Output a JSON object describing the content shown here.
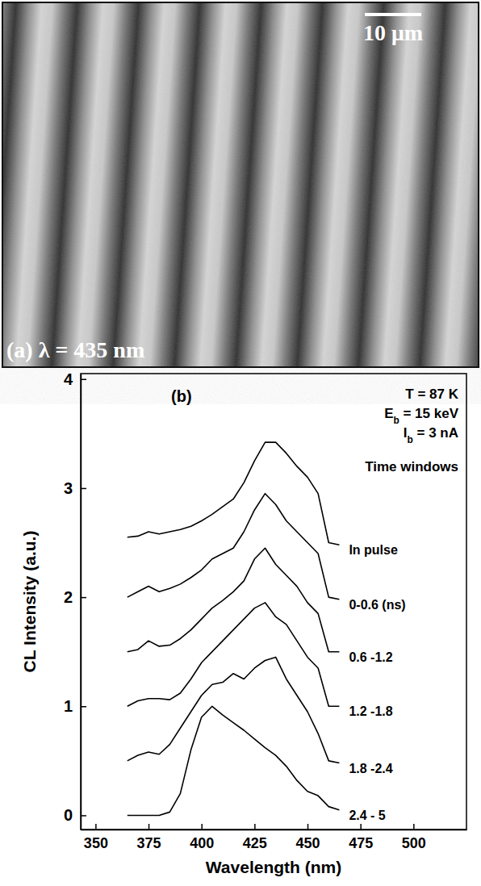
{
  "chart_data": [
    {
      "type": "image",
      "title": "(a) λ = 435 nm",
      "annotations": [
        "10 μm"
      ]
    },
    {
      "type": "line",
      "title": "(b)",
      "annotations": [
        "T = 87 K",
        "Eb = 15 keV",
        "Ib = 3 nA",
        "Time windows"
      ],
      "x_label": "Wavelength (nm)",
      "y_label": "CL Intensity (a.u.)",
      "x": [
        365,
        370,
        375,
        380,
        385,
        390,
        395,
        400,
        405,
        410,
        415,
        420,
        425,
        430,
        435,
        440,
        445,
        450,
        455,
        460,
        465
      ],
      "xlim": [
        343,
        525
      ],
      "xticks": [
        350,
        375,
        400,
        425,
        450,
        475,
        500
      ],
      "ylim": [
        -0.13,
        4.05
      ],
      "yticks": [
        0,
        1,
        2,
        3,
        4
      ],
      "legend": "right",
      "series": [
        {
          "name": "In pulse",
          "color": "#000000",
          "values": [
            2.55,
            2.56,
            2.6,
            2.58,
            2.6,
            2.62,
            2.65,
            2.7,
            2.76,
            2.83,
            2.9,
            3.05,
            3.25,
            3.42,
            3.42,
            3.32,
            3.2,
            3.1,
            2.95,
            2.5,
            2.48
          ]
        },
        {
          "name": "0-0.6 (ns)",
          "color": "#000000",
          "values": [
            2.0,
            2.05,
            2.1,
            2.05,
            2.08,
            2.12,
            2.18,
            2.25,
            2.35,
            2.4,
            2.45,
            2.6,
            2.8,
            2.95,
            2.85,
            2.7,
            2.6,
            2.5,
            2.4,
            2.0,
            1.98
          ]
        },
        {
          "name": "0.6 -1.2",
          "color": "#000000",
          "values": [
            1.5,
            1.52,
            1.6,
            1.55,
            1.56,
            1.62,
            1.7,
            1.8,
            1.9,
            1.97,
            2.05,
            2.15,
            2.35,
            2.45,
            2.3,
            2.2,
            2.1,
            1.95,
            1.85,
            1.5,
            1.5
          ]
        },
        {
          "name": "1.2 -1.8",
          "color": "#000000",
          "values": [
            1.0,
            1.05,
            1.07,
            1.07,
            1.06,
            1.12,
            1.25,
            1.4,
            1.5,
            1.6,
            1.7,
            1.8,
            1.9,
            1.95,
            1.82,
            1.75,
            1.6,
            1.45,
            1.35,
            1.0,
            1.0
          ]
        },
        {
          "name": "1.8 -2.4",
          "color": "#000000",
          "values": [
            0.5,
            0.55,
            0.58,
            0.56,
            0.65,
            0.8,
            0.95,
            1.1,
            1.2,
            1.22,
            1.3,
            1.25,
            1.35,
            1.42,
            1.45,
            1.25,
            1.1,
            0.95,
            0.75,
            0.5,
            0.48
          ]
        },
        {
          "name": "2.4 - 5",
          "color": "#000000",
          "values": [
            0,
            0,
            0,
            0,
            0.03,
            0.2,
            0.6,
            0.9,
            1.0,
            0.92,
            0.85,
            0.78,
            0.7,
            0.62,
            0.55,
            0.45,
            0.32,
            0.22,
            0.18,
            0.08,
            0.05
          ]
        }
      ]
    }
  ]
}
